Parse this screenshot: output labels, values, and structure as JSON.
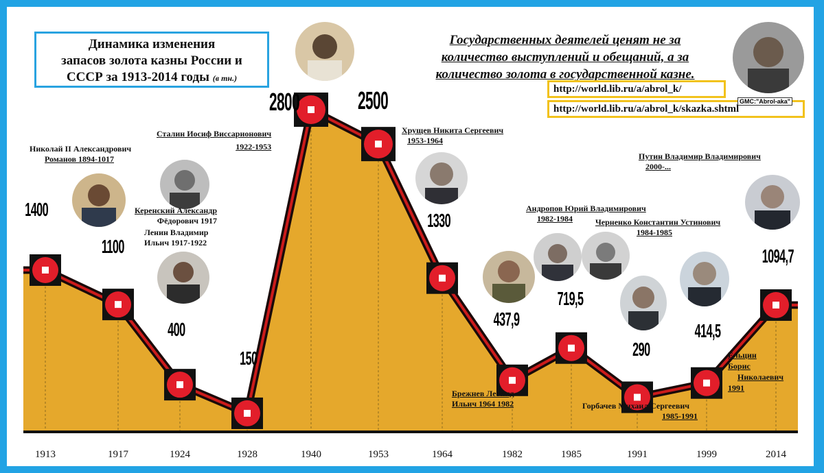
{
  "title": {
    "line1": "Динамика изменения",
    "line2": "запасов золота казны России и",
    "line3": "СССР за 1913-2014 годы",
    "unit": "(в тн.)"
  },
  "quote": {
    "line1": "Государственных деятелей ценят не за",
    "line2": "количество выступлений и обещаний, а за",
    "line3": "количество золота в государственной казне."
  },
  "urls": [
    "http://world.lib.ru/a/abrol_k/",
    "http://world.lib.ru/a/abrol_k/skazka.shtml"
  ],
  "author_tag": "GMC:\"Abrol-aka\"",
  "colors": {
    "frame": "#22a3e4",
    "area": "#e5a82c",
    "line": "#1a0a0a",
    "line_inner": "#cc1b1b",
    "marker": "#e21e2a",
    "url_border": "#f2c21c"
  },
  "rulers": {
    "nicholas": {
      "line1": "Николай II Александрович",
      "line2": "Романов 1894-1017"
    },
    "kerensky": {
      "line1": "Керенский Александр",
      "line2": "Фёдорович 1917"
    },
    "lenin": {
      "line1": "Ленин Владимир",
      "line2": "Ильич 1917-1922"
    },
    "stalin": {
      "line1": "Сталин Иосиф Виссарионович",
      "line2": "1922-1953"
    },
    "khrushchev": {
      "line1": "Хрущев Никита Сергеевич",
      "line2": "1953-1964"
    },
    "andropov": {
      "line1": "Андропов Юрий Владимирович",
      "line2": "1982-1984"
    },
    "chernenko": {
      "line1": "Черненко Константин Устинович",
      "line2": "1984-1985"
    },
    "brezhnev": {
      "line1": "Брежнев  Леонид",
      "line2": "Ильич   1964 1982"
    },
    "gorbachev": {
      "line1": "Горбачев Михаил Сергеевич",
      "line2": "1985-1991"
    },
    "yeltsin": {
      "line1": "Ельцин",
      "line2": "Борис",
      "line3": "Николаевич",
      "line4": "1991"
    },
    "putin": {
      "line1": "Путин Владимир Владимирович",
      "line2": "2000-..."
    }
  },
  "value_labels": [
    "1400",
    "1100",
    "400",
    "150",
    "2800",
    "2500",
    "1330",
    "437,9",
    "719,5",
    "290",
    "414,5",
    "1094,7"
  ],
  "chart_data": {
    "type": "area",
    "title": "Динамика изменения запасов золота казны России и СССР за 1913-2014 годы (в тн.)",
    "xlabel": "",
    "ylabel": "",
    "categories": [
      "1913",
      "1917",
      "1924",
      "1928",
      "1940",
      "1953",
      "1964",
      "1982",
      "1985",
      "1991",
      "1999",
      "2014"
    ],
    "values": [
      1400,
      1100,
      400,
      150,
      2800,
      2500,
      1330,
      437.9,
      719.5,
      290,
      414.5,
      1094.7
    ],
    "ylim": [
      0,
      2800
    ],
    "grid": "vertical-dashed",
    "legend": "none"
  }
}
